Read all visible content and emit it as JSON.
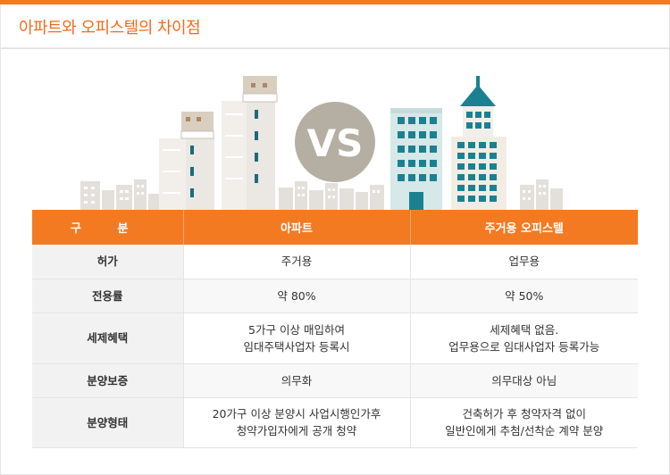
{
  "title": "아파트와 오피스텔의 차이점",
  "vs_label": "VS",
  "colors": {
    "accent": "#f47920",
    "header_bg": "#f47a22",
    "vs_circle": "#b5aea3",
    "building_teal": "#1b7a8a",
    "building_light": "#d6e8e8"
  },
  "table": {
    "headers": [
      "구 분",
      "아파트",
      "주거용 오피스텔"
    ],
    "rows": [
      {
        "label": "허가",
        "apt": "주거용",
        "office": "업무용"
      },
      {
        "label": "전용률",
        "apt": "약 80%",
        "office": "약 50%"
      },
      {
        "label": "세제혜택",
        "apt": [
          "5가구 이상 매입하여",
          "임대주택사업자 등록시"
        ],
        "office": [
          "세제혜택 없음.",
          "업무용으로 임대사업자 등록가능"
        ]
      },
      {
        "label": "분양보증",
        "apt": "의무화",
        "office": "의무대상 아님"
      },
      {
        "label": "분양형태",
        "apt": [
          "20가구 이상 분양시 사업시행인가후",
          "청약가입자에게 공개 청약"
        ],
        "office": [
          "건축허가 후 청약자격 없이",
          "일반인에게 추첨/선착순 계약 분양"
        ]
      }
    ]
  }
}
